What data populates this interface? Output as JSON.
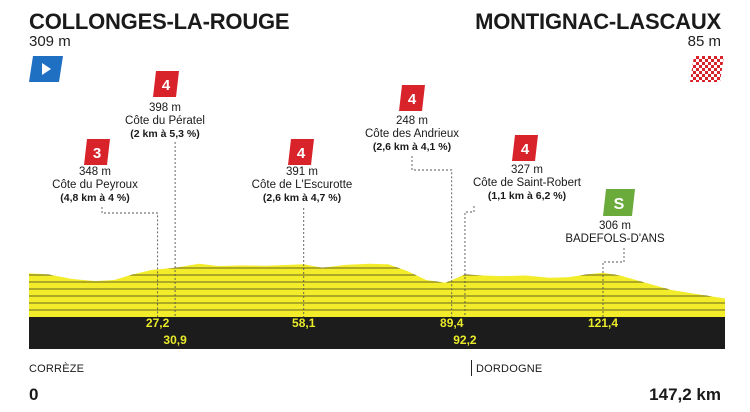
{
  "start": {
    "name": "COLLONGES-LA-ROUGE",
    "altitude": "309 m"
  },
  "finish": {
    "name": "MONTIGNAC-LASCAUX",
    "altitude": "85 m"
  },
  "climbs": [
    {
      "category": "3",
      "altitude": "348 m",
      "name": "Côte du Peyroux",
      "detail": "(4,8 km à 4 %)"
    },
    {
      "category": "4",
      "altitude": "398 m",
      "name": "Côte du Pératel",
      "detail": "(2 km à 5,3 %)"
    },
    {
      "category": "4",
      "altitude": "391 m",
      "name": "Côte de L'Escurotte",
      "detail": "(2,6 km à 4,7 %)"
    },
    {
      "category": "4",
      "altitude": "248 m",
      "name": "Côte des Andrieux",
      "detail": "(2,6 km à 4,1 %)"
    },
    {
      "category": "4",
      "altitude": "327 m",
      "name": "Côte de Saint-Robert",
      "detail": "(1,1 km à 6,2 %)"
    }
  ],
  "sprint": {
    "altitude": "306 m",
    "name": "BADEFOLS-D'ANS"
  },
  "km_markers": [
    "27,2",
    "30,9",
    "58,1",
    "89,4",
    "92,2",
    "121,4"
  ],
  "regions": {
    "left": "CORRÈZE",
    "right": "DORDOGNE"
  },
  "distance": {
    "start": "0",
    "end": "147,2 km"
  },
  "colors": {
    "profile_fill": "#f3ec2a",
    "mountain_badge": "#d9232a",
    "sprint_badge": "#6aab3c",
    "start_flag": "#1f6fc2",
    "base_band": "#1c1c1c",
    "km_text": "#e9ea2a"
  },
  "chart_data": {
    "type": "area",
    "x_unit": "km",
    "y_unit": "m",
    "points": [
      [
        0,
        309
      ],
      [
        4,
        300
      ],
      [
        9,
        260
      ],
      [
        14,
        240
      ],
      [
        18,
        250
      ],
      [
        22,
        300
      ],
      [
        26,
        340
      ],
      [
        27.2,
        345
      ],
      [
        30.9,
        360
      ],
      [
        36,
        395
      ],
      [
        40,
        375
      ],
      [
        45,
        380
      ],
      [
        50,
        378
      ],
      [
        55,
        385
      ],
      [
        58.1,
        391
      ],
      [
        62,
        360
      ],
      [
        67,
        385
      ],
      [
        72,
        395
      ],
      [
        76,
        390
      ],
      [
        80,
        330
      ],
      [
        84,
        250
      ],
      [
        88,
        225
      ],
      [
        89.4,
        248
      ],
      [
        92.2,
        300
      ],
      [
        96,
        290
      ],
      [
        100,
        285
      ],
      [
        105,
        290
      ],
      [
        110,
        270
      ],
      [
        114,
        275
      ],
      [
        118,
        300
      ],
      [
        121.4,
        315
      ],
      [
        125,
        290
      ],
      [
        130,
        230
      ],
      [
        136,
        160
      ],
      [
        142,
        120
      ],
      [
        147.2,
        85
      ]
    ],
    "xlim": [
      0,
      147.2
    ]
  }
}
